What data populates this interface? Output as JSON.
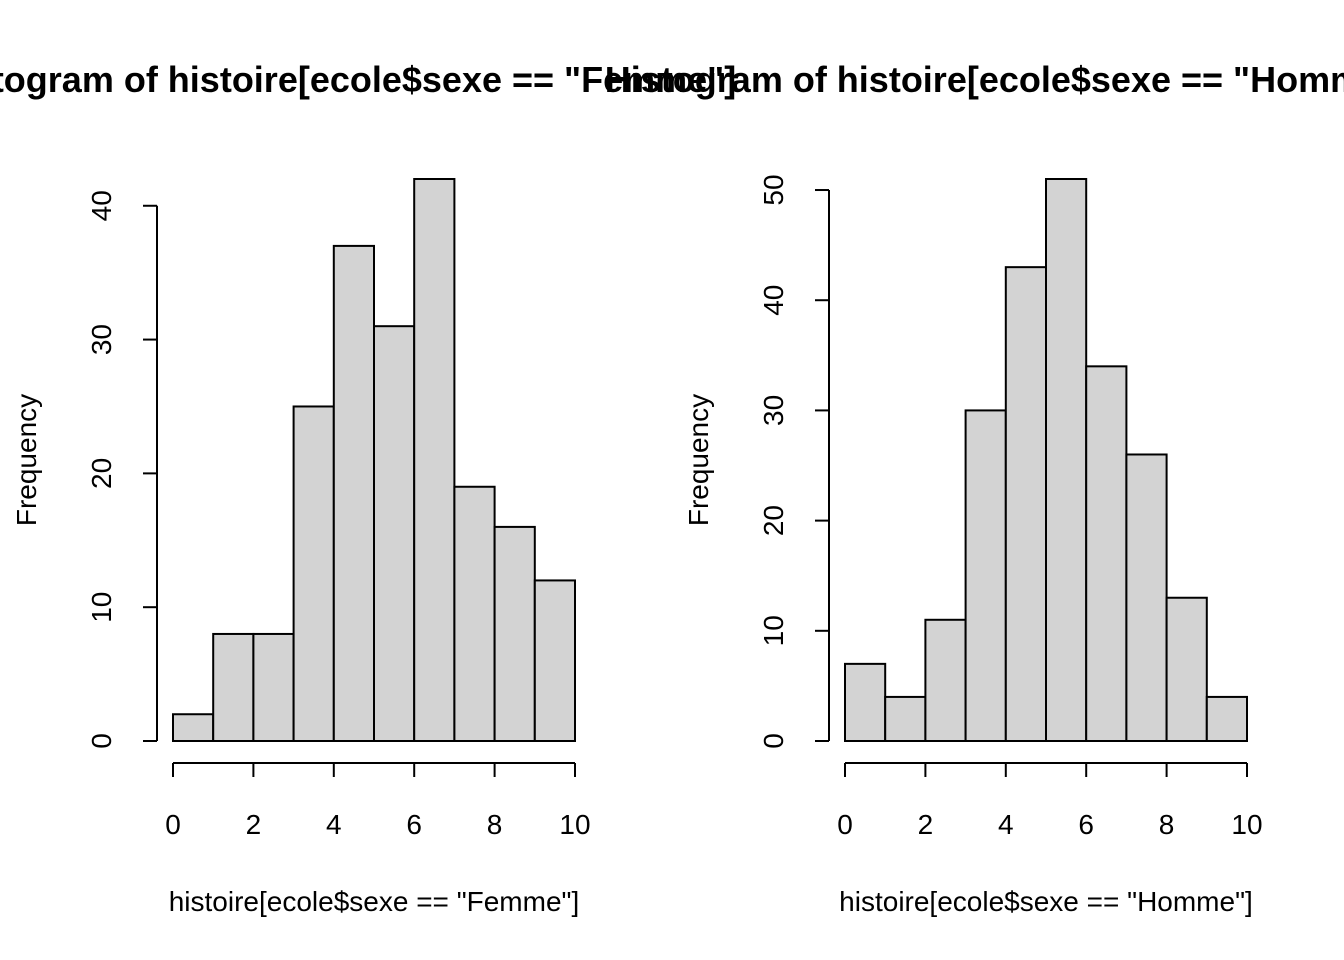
{
  "chart_data": [
    {
      "type": "bar",
      "title": "Histogram of histoire[ecole$sexe == \"Femme\"]",
      "xlabel": "histoire[ecole$sexe == \"Femme\"]",
      "ylabel": "Frequency",
      "bin_edges": [
        0,
        1,
        2,
        3,
        4,
        5,
        6,
        7,
        8,
        9,
        10
      ],
      "values": [
        2,
        8,
        8,
        25,
        37,
        31,
        42,
        19,
        16,
        12
      ],
      "xlim": [
        0,
        10
      ],
      "ylim": [
        0,
        42
      ],
      "xticks": [
        0,
        2,
        4,
        6,
        8,
        10
      ],
      "yticks": [
        0,
        10,
        20,
        30,
        40
      ],
      "bar_color": "#d3d3d3",
      "grid": false
    },
    {
      "type": "bar",
      "title": "Histogram of histoire[ecole$sexe == \"Homme\"]",
      "xlabel": "histoire[ecole$sexe == \"Homme\"]",
      "ylabel": "Frequency",
      "bin_edges": [
        0,
        1,
        2,
        3,
        4,
        5,
        6,
        7,
        8,
        9,
        10
      ],
      "values": [
        7,
        4,
        11,
        30,
        43,
        51,
        34,
        26,
        13,
        4
      ],
      "xlim": [
        0,
        10
      ],
      "ylim": [
        0,
        51
      ],
      "xticks": [
        0,
        2,
        4,
        6,
        8,
        10
      ],
      "yticks": [
        0,
        10,
        20,
        30,
        40,
        50
      ],
      "bar_color": "#d3d3d3",
      "grid": false
    }
  ]
}
